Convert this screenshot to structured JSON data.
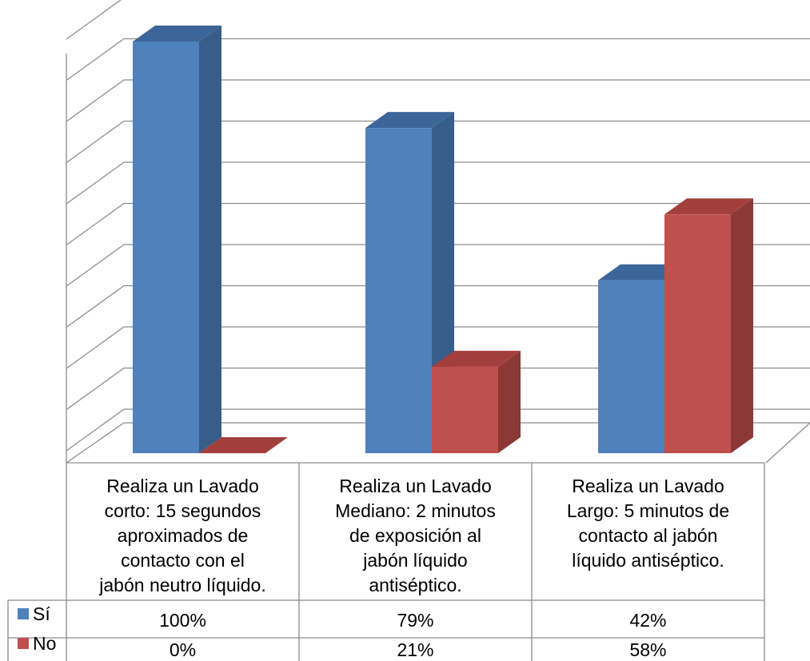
{
  "chart_data": {
    "type": "bar",
    "style": "3d-clustered-column-with-data-table",
    "categories": [
      [
        "Realiza un Lavado",
        "corto: 15 segundos",
        "aproximados de",
        "contacto con el",
        "jabón neutro líquido."
      ],
      [
        "Realiza un Lavado",
        "Mediano: 2 minutos",
        "de exposición al",
        "jabón líquido",
        "antiséptico."
      ],
      [
        "Realiza un Lavado",
        "Largo: 5 minutos de",
        "contacto al jabón",
        "líquido antiséptico."
      ]
    ],
    "series": [
      {
        "name": "Sí",
        "values": [
          100,
          79,
          42
        ],
        "labels": [
          "100%",
          "79%",
          "42%"
        ],
        "color": "#4f81bd",
        "side": "#385d8a",
        "top": "#3c6599"
      },
      {
        "name": "No",
        "values": [
          0,
          21,
          58
        ],
        "labels": [
          "0%",
          "21%",
          "58%"
        ],
        "color": "#c0504d",
        "side": "#8c3836",
        "top": "#a23f3d"
      }
    ],
    "ylim": [
      0,
      100
    ],
    "grid": true,
    "gridlines": 10,
    "legend": "data-table-keys"
  }
}
